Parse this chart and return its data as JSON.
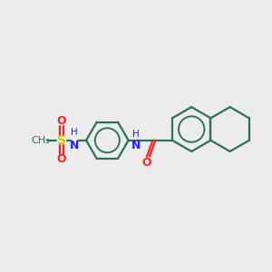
{
  "bg_color": "#ececec",
  "bond_color": "#2e6e5e",
  "N_color": "#2020ff",
  "O_color": "#ff2020",
  "S_color": "#cccc00",
  "line_width": 1.6,
  "fig_size": [
    3.0,
    3.0
  ],
  "dpi": 100,
  "xlim": [
    0,
    10
  ],
  "ylim": [
    0,
    10
  ]
}
